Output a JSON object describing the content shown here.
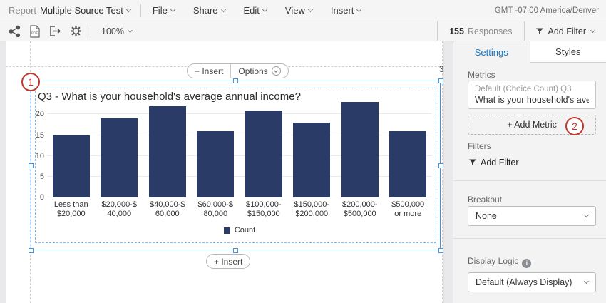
{
  "menubar": {
    "report_label": "Report",
    "report_name": "Multiple Source Test",
    "menus": [
      "File",
      "Share",
      "Edit",
      "View",
      "Insert"
    ],
    "timezone": "GMT -07:00 America/Denver"
  },
  "toolbar": {
    "zoom_level": "100%",
    "responses_count": "155",
    "responses_label": "Responses",
    "add_filter_label": "Add Filter"
  },
  "canvas": {
    "insert_top_label": "+ Insert",
    "options_label": "Options",
    "insert_bottom_label": "+ Insert",
    "annotation_1": "1",
    "annotation_2": "2",
    "page_number": "3"
  },
  "chart_data": {
    "type": "bar",
    "title": "Q3 - What is your household's average annual income?",
    "categories": [
      [
        "Less than",
        "$20,000"
      ],
      [
        "$20,000-$",
        "40,000"
      ],
      [
        "$40,000-$",
        "60,000"
      ],
      [
        "$60,000-$",
        "80,000"
      ],
      [
        "$100,000-",
        "$150,000"
      ],
      [
        "$150,000-",
        "$200,000"
      ],
      [
        "$200,000-",
        "$500,000"
      ],
      [
        "$500,000",
        "or more"
      ]
    ],
    "values": [
      15,
      19,
      22,
      16,
      21,
      18,
      23,
      16
    ],
    "y_ticks": [
      0,
      5,
      10,
      15,
      20
    ],
    "ylim": [
      0,
      24
    ],
    "grid": true,
    "legend": [
      "Count"
    ],
    "legend_position": "bottom",
    "bar_color": "#2b3b67",
    "xlabel": "",
    "ylabel": ""
  },
  "sidebar": {
    "tabs": [
      {
        "label": "Settings",
        "active": true
      },
      {
        "label": "Styles",
        "active": false
      }
    ],
    "metrics_label": "Metrics",
    "metric_card": {
      "line1": "Default (Choice Count) Q3",
      "line2": "What is your household's averag…"
    },
    "add_metric_label": "+ Add Metric",
    "filters_label": "Filters",
    "add_filter_label": "Add Filter",
    "breakout_label": "Breakout",
    "breakout_value": "None",
    "display_logic_label": "Display Logic",
    "display_logic_value": "Default (Always Display)"
  },
  "colors": {
    "accent_blue": "#1678c2",
    "selection_blue": "#4a90d9",
    "annotation_red": "#c0392f",
    "bar_navy": "#2b3b67"
  }
}
